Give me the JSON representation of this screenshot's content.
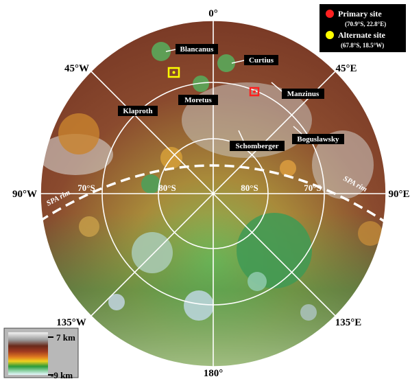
{
  "map": {
    "longitude_labels": [
      "0°",
      "45°E",
      "90°E",
      "135°E",
      "180°",
      "135°W",
      "90°W",
      "45°W"
    ],
    "latitude_labels": [
      "70°S",
      "80°S",
      "80°S",
      "70°S"
    ],
    "rim_label": "SPA rim",
    "craters": [
      "Blancanus",
      "Curtius",
      "Manzinus",
      "Moretus",
      "Klaproth",
      "Boguslawsky",
      "Schomberger"
    ]
  },
  "sites_legend": {
    "primary": {
      "title": "Primary site",
      "coords": "(70.9°S, 22.8°E)",
      "color": "#ff2020"
    },
    "alternate": {
      "title": "Alternate site",
      "coords": "(67.8°S, 18.5°W)",
      "color": "#ffff00"
    }
  },
  "elevation_legend": {
    "max": "7 km",
    "min": "-9 km"
  }
}
